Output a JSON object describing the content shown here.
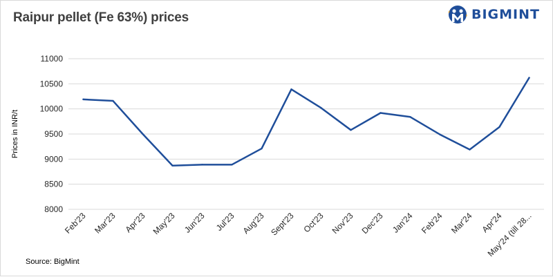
{
  "header": {
    "title": "Raipur pellet (Fe 63%) prices"
  },
  "logo": {
    "text": "BIGMINT",
    "color": "#1f4e9a"
  },
  "footer": {
    "source": "Source: BigMint"
  },
  "chart_data": {
    "type": "line",
    "title": "Raipur pellet (Fe 63%) prices",
    "xlabel": "",
    "ylabel": "Prices in INR/t",
    "ylim": [
      8000,
      11000
    ],
    "yticks": [
      8000,
      8500,
      9000,
      9500,
      10000,
      10500,
      11000
    ],
    "categories": [
      "Feb'23",
      "Mar'23",
      "Apr'23",
      "May'23",
      "Jun'23",
      "Jul'23",
      "Aug'23",
      "Sept'23",
      "Oct'23",
      "Nov'23",
      "Dec'23",
      "Jan'24",
      "Feb'24",
      "Mar'24",
      "Apr'24",
      "May'24 (till 28..."
    ],
    "series": [
      {
        "color": "#1f4e9a",
        "values": [
          10190,
          10160,
          9500,
          8870,
          8890,
          8890,
          9210,
          10390,
          10020,
          9580,
          9920,
          9840,
          9490,
          9190,
          9640,
          10620
        ]
      }
    ],
    "grid": true,
    "legend": "none"
  }
}
